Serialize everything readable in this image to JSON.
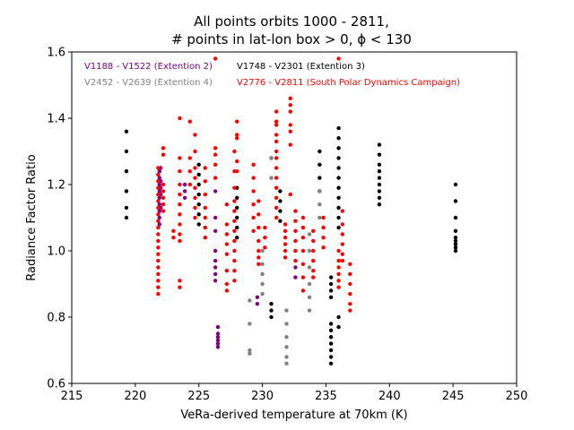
{
  "chart_data": {
    "type": "scatter",
    "title_line1": "All points orbits 1000 - 2811,",
    "title_line2": "# points in lat-lon box > 0, ϕ < 130",
    "xlabel": "VeRa-derived temperature at 70km (K)",
    "ylabel": "Radiance Factor Ratio",
    "xlim": [
      215,
      250
    ],
    "ylim": [
      0.6,
      1.6
    ],
    "xticks": [
      "215",
      "220",
      "225",
      "230",
      "235",
      "240",
      "245",
      "250"
    ],
    "yticks": [
      "0.6",
      "0.8",
      "1.0",
      "1.2",
      "1.4",
      "1.6"
    ],
    "grid": false,
    "legend_placement": "top-left, inside plot",
    "series": [
      {
        "name": "V1188 - V1522 (Extention 2)",
        "color": "#800080",
        "columns": [
          {
            "x": 221.9,
            "y": [
              1.24,
              1.22,
              1.2,
              1.18,
              1.16,
              1.14,
              1.12,
              1.1,
              1.08
            ]
          },
          {
            "x": 222.0,
            "y": [
              1.25,
              1.21,
              1.19,
              1.17,
              1.13
            ]
          },
          {
            "x": 223.9,
            "y": [
              1.2,
              1.18,
              1.16
            ]
          },
          {
            "x": 226.3,
            "y": [
              1.18,
              1.1,
              1.06,
              1.0,
              0.97,
              0.95,
              0.93,
              0.91
            ]
          },
          {
            "x": 226.5,
            "y": [
              0.77,
              0.75,
              0.74,
              0.73,
              0.72,
              0.71
            ]
          },
          {
            "x": 229.6,
            "y": [
              0.86,
              0.84
            ]
          },
          {
            "x": 230.7,
            "y": [
              1.28
            ]
          },
          {
            "x": 232.6,
            "y": [
              0.95,
              0.92
            ]
          }
        ]
      },
      {
        "name": "V1748 - V2301 (Extention 3)",
        "color": "#000000",
        "columns": [
          {
            "x": 219.3,
            "y": [
              1.36,
              1.3,
              1.24,
              1.18,
              1.13,
              1.1
            ]
          },
          {
            "x": 225.0,
            "y": [
              1.26,
              1.23,
              1.2,
              1.17,
              1.14,
              1.11,
              1.08
            ]
          },
          {
            "x": 228.0,
            "y": [
              1.19,
              1.16,
              1.13,
              1.1,
              1.07,
              1.04
            ]
          },
          {
            "x": 230.7,
            "y": [
              0.84,
              0.82,
              0.8
            ]
          },
          {
            "x": 231.4,
            "y": [
              1.18,
              1.15,
              1.12,
              1.09
            ]
          },
          {
            "x": 234.5,
            "y": [
              1.3,
              1.26,
              1.22,
              1.18
            ]
          },
          {
            "x": 235.4,
            "y": [
              0.92,
              0.9,
              0.88,
              0.86,
              0.78,
              0.76,
              0.74,
              0.72,
              0.7,
              0.68,
              0.66
            ]
          },
          {
            "x": 236.0,
            "y": [
              1.37,
              1.34,
              1.31,
              1.28,
              1.25,
              1.22,
              1.19,
              1.16,
              1.13,
              1.1,
              1.07,
              0.8,
              0.77
            ]
          },
          {
            "x": 239.2,
            "y": [
              1.32,
              1.29,
              1.26,
              1.24,
              1.22,
              1.2,
              1.18,
              1.16,
              1.14
            ]
          },
          {
            "x": 245.2,
            "y": [
              1.2,
              1.15,
              1.1,
              1.06,
              1.04,
              1.03,
              1.02,
              1.01,
              1.0
            ]
          }
        ]
      },
      {
        "name": "V2452 - V2639 (Extention 4)",
        "color": "#808080",
        "columns": [
          {
            "x": 229.0,
            "y": [
              0.85,
              0.78,
              0.7,
              0.69
            ]
          },
          {
            "x": 230.0,
            "y": [
              1.0,
              0.96,
              0.93,
              0.9,
              0.87
            ]
          },
          {
            "x": 230.7,
            "y": [
              1.28,
              1.22
            ]
          },
          {
            "x": 231.9,
            "y": [
              0.82,
              0.78,
              0.74,
              0.71,
              0.68,
              0.66
            ]
          },
          {
            "x": 233.7,
            "y": [
              1.05,
              1.0,
              0.95,
              0.9,
              0.86,
              0.82
            ]
          },
          {
            "x": 234.5,
            "y": [
              1.18,
              1.14,
              1.1
            ]
          }
        ]
      },
      {
        "name": "V2776 - V2811 (South Polar Dynamics Campaign)",
        "color": "#ff0000",
        "columns": [
          {
            "x": 221.8,
            "y": [
              1.25,
              1.23,
              1.21,
              1.19,
              1.17,
              1.15,
              1.13,
              1.11,
              1.09,
              1.07,
              1.05,
              1.03,
              1.01,
              0.99,
              0.97,
              0.95,
              0.93,
              0.91,
              0.89,
              0.87
            ]
          },
          {
            "x": 222.2,
            "y": [
              1.31,
              1.29,
              1.2,
              1.18,
              1.16,
              1.14,
              1.12
            ]
          },
          {
            "x": 223.0,
            "y": [
              1.06,
              1.04
            ]
          },
          {
            "x": 223.5,
            "y": [
              1.4,
              1.28,
              1.24,
              1.2,
              1.17,
              1.14,
              1.11,
              1.08,
              1.05,
              1.03,
              0.91,
              0.89
            ]
          },
          {
            "x": 224.3,
            "y": [
              1.39,
              1.28,
              1.24,
              1.2
            ]
          },
          {
            "x": 224.7,
            "y": [
              1.35,
              1.3,
              1.25,
              1.22,
              1.19,
              1.16,
              1.13,
              1.1
            ]
          },
          {
            "x": 225.5,
            "y": [
              1.25,
              1.21,
              1.17,
              1.13,
              1.1,
              1.07,
              1.04
            ]
          },
          {
            "x": 226.3,
            "y": [
              1.31,
              1.29,
              1.26,
              1.22,
              1.58
            ]
          },
          {
            "x": 227.2,
            "y": [
              1.14,
              1.08,
              1.05,
              1.02,
              0.99,
              0.94,
              0.9,
              0.88
            ]
          },
          {
            "x": 227.8,
            "y": [
              1.3,
              1.24,
              1.19,
              1.15,
              1.12,
              1.09,
              1.06,
              1.03,
              1.0,
              0.97,
              0.94,
              0.91
            ]
          },
          {
            "x": 228.0,
            "y": [
              1.39,
              1.35,
              1.34,
              1.27,
              1.24
            ]
          },
          {
            "x": 229.3,
            "y": [
              1.26,
              1.22,
              1.18,
              1.14,
              1.1,
              1.06
            ]
          },
          {
            "x": 229.7,
            "y": [
              1.15,
              1.11,
              1.07,
              1.03,
              1.0,
              0.98,
              0.96
            ]
          },
          {
            "x": 230.2,
            "y": [
              1.07,
              1.04,
              1.01
            ]
          },
          {
            "x": 231.1,
            "y": [
              1.42,
              1.39,
              1.38,
              1.35,
              1.33,
              1.3,
              1.28,
              1.25,
              1.22,
              1.19,
              1.16,
              1.13,
              1.1
            ]
          },
          {
            "x": 231.8,
            "y": [
              1.08,
              1.06,
              1.04,
              1.02,
              1.0,
              0.98
            ]
          },
          {
            "x": 232.2,
            "y": [
              1.46,
              1.44,
              1.42,
              1.38,
              1.36,
              1.32,
              1.17
            ]
          },
          {
            "x": 232.6,
            "y": [
              1.12,
              1.09,
              1.06,
              1.03,
              1.0,
              0.97
            ]
          },
          {
            "x": 233.2,
            "y": [
              1.1,
              1.07,
              1.04,
              1.0,
              0.96,
              0.92,
              0.88
            ]
          },
          {
            "x": 234.0,
            "y": [
              1.06,
              1.03,
              1.0,
              0.97,
              0.94,
              0.92
            ]
          },
          {
            "x": 234.8,
            "y": [
              1.1,
              1.07,
              1.04,
              1.01
            ]
          },
          {
            "x": 236.0,
            "y": [
              1.58,
              1.0,
              0.97,
              0.95,
              0.93,
              0.91,
              0.89
            ]
          },
          {
            "x": 236.3,
            "y": [
              1.12,
              1.08,
              1.05,
              1.02,
              0.99,
              0.97
            ]
          },
          {
            "x": 236.9,
            "y": [
              0.96,
              0.93,
              0.9,
              0.87,
              0.84,
              0.82
            ]
          }
        ]
      }
    ]
  }
}
